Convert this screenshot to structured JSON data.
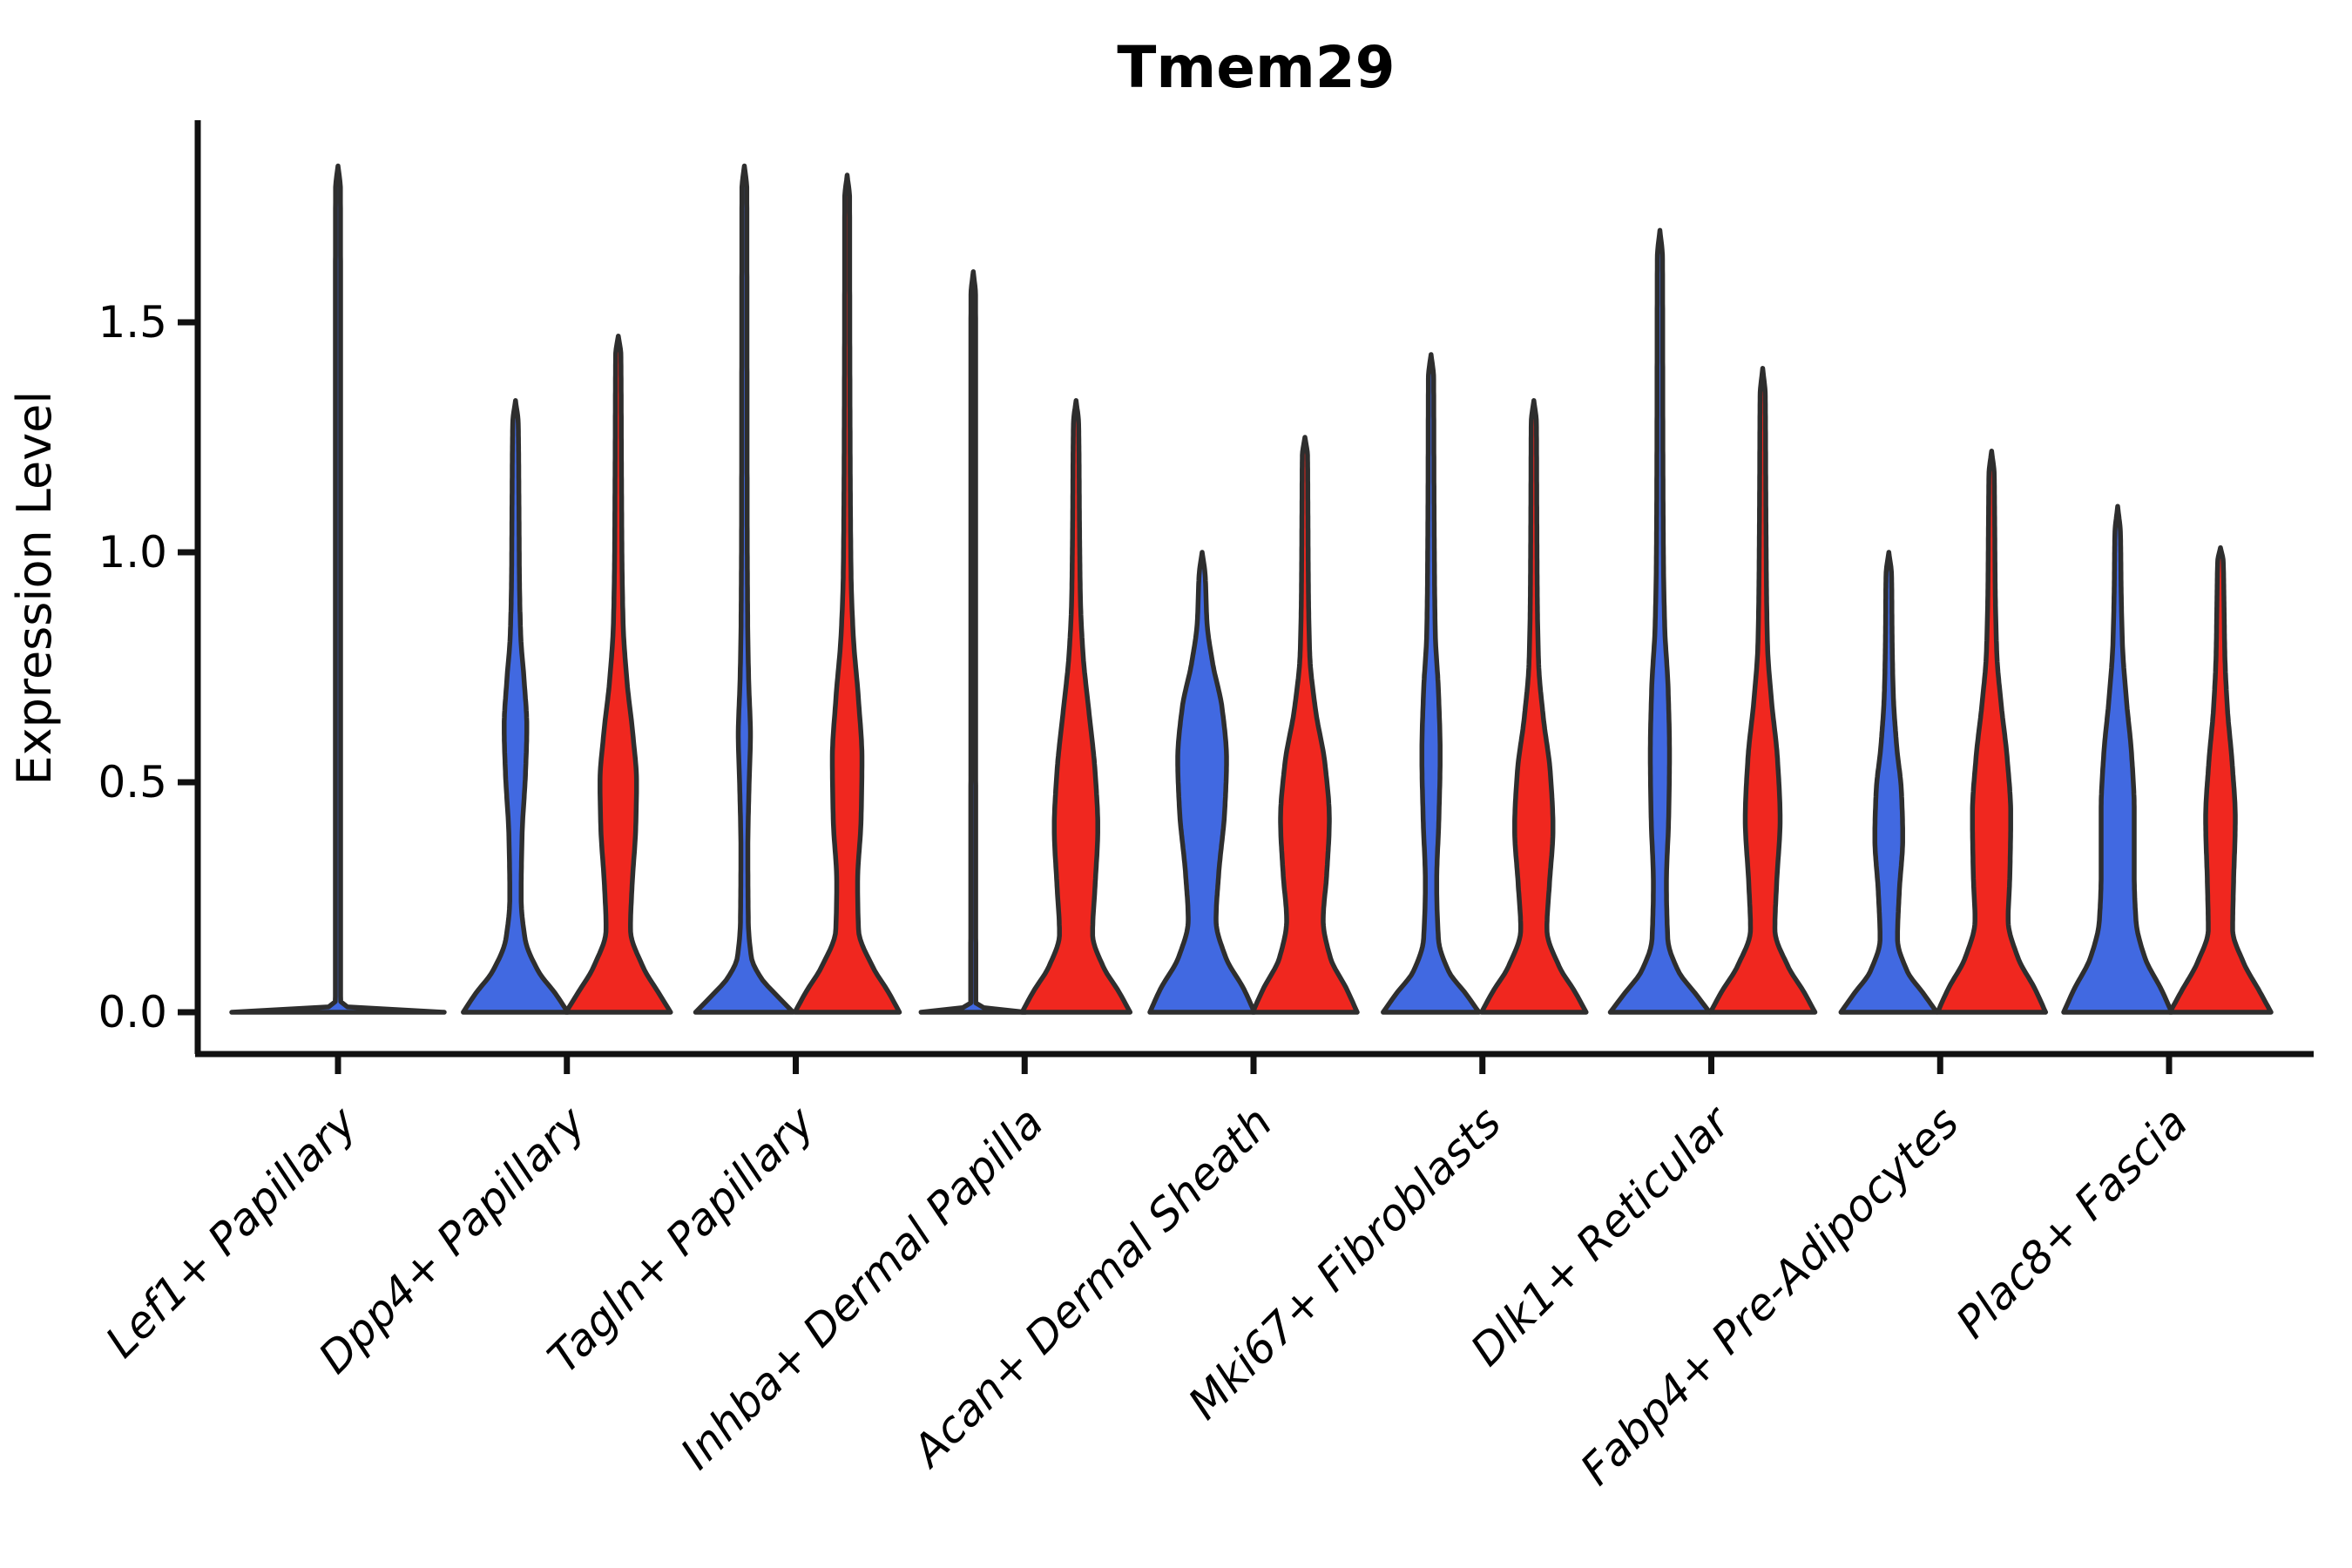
{
  "chart_data": {
    "type": "violin",
    "title": "Tmem29",
    "ylabel": "Expression Level",
    "xlabel": "",
    "yticks": {
      "labels": [
        "0.0",
        "0.5",
        "1.0",
        "1.5"
      ],
      "values": [
        0.0,
        0.5,
        1.0,
        1.5
      ]
    },
    "ylim": [
      -0.09,
      1.94
    ],
    "grid": false,
    "legend": "none",
    "colors": {
      "blue": "#4169E1",
      "red": "#F0271F",
      "outline": "#2E2E2E",
      "axis": "#111111"
    },
    "categories": [
      "Lef1+ Papillary",
      "Dpp4+ Papillary",
      "Tagln+ Papillary",
      "Inhba+ Dermal Papilla",
      "Acan+ Dermal Sheath",
      "Mki67+ Fibroblasts",
      "Dlk1+ Reticular",
      "Fabp4+ Pre-Adipocytes",
      "Plac8+ Fascia"
    ],
    "violins": [
      {
        "category": "Lef1+ Papillary",
        "items": [
          {
            "hue": "single",
            "max": 1.84,
            "profile": [
              [
                0,
                122
              ],
              [
                0.012,
                10
              ],
              [
                0.025,
                3
              ],
              [
                0.5,
                3
              ],
              [
                1.0,
                3
              ],
              [
                1.5,
                3
              ],
              [
                1.79,
                2.8
              ],
              [
                1.84,
                0
              ]
            ]
          }
        ]
      },
      {
        "category": "Dpp4+ Papillary",
        "items": [
          {
            "hue": "blue",
            "max": 1.33,
            "profile": [
              [
                0,
                60
              ],
              [
                0.04,
                46
              ],
              [
                0.09,
                26
              ],
              [
                0.16,
                11
              ],
              [
                0.25,
                6.5
              ],
              [
                0.38,
                7.5
              ],
              [
                0.52,
                11.5
              ],
              [
                0.62,
                13
              ],
              [
                0.72,
                10
              ],
              [
                0.82,
                6
              ],
              [
                0.95,
                4.5
              ],
              [
                1.1,
                4
              ],
              [
                1.28,
                3.2
              ],
              [
                1.33,
                0
              ]
            ]
          },
          {
            "hue": "red",
            "max": 1.47,
            "profile": [
              [
                0,
                60
              ],
              [
                0.04,
                47
              ],
              [
                0.1,
                28
              ],
              [
                0.18,
                14
              ],
              [
                0.28,
                16
              ],
              [
                0.4,
                20
              ],
              [
                0.5,
                21
              ],
              [
                0.6,
                17
              ],
              [
                0.72,
                10
              ],
              [
                0.85,
                5.5
              ],
              [
                1.0,
                4.2
              ],
              [
                1.2,
                3.6
              ],
              [
                1.43,
                3
              ],
              [
                1.47,
                0
              ]
            ]
          }
        ]
      },
      {
        "category": "Tagln+ Papillary",
        "items": [
          {
            "hue": "blue",
            "max": 1.84,
            "profile": [
              [
                0,
                56
              ],
              [
                0.035,
                38
              ],
              [
                0.075,
                19
              ],
              [
                0.12,
                8
              ],
              [
                0.2,
                4.5
              ],
              [
                0.35,
                4
              ],
              [
                0.5,
                5.5
              ],
              [
                0.6,
                7
              ],
              [
                0.72,
                5
              ],
              [
                0.85,
                3.8
              ],
              [
                1.1,
                3.2
              ],
              [
                1.5,
                3
              ],
              [
                1.79,
                2.8
              ],
              [
                1.84,
                0
              ]
            ]
          },
          {
            "hue": "red",
            "max": 1.82,
            "profile": [
              [
                0,
                60
              ],
              [
                0.045,
                47
              ],
              [
                0.1,
                29
              ],
              [
                0.18,
                13
              ],
              [
                0.28,
                12
              ],
              [
                0.42,
                16
              ],
              [
                0.55,
                17
              ],
              [
                0.68,
                13
              ],
              [
                0.82,
                7
              ],
              [
                0.95,
                4.5
              ],
              [
                1.15,
                3.6
              ],
              [
                1.5,
                3
              ],
              [
                1.77,
                2.8
              ],
              [
                1.82,
                0
              ]
            ]
          }
        ]
      },
      {
        "category": "Inhba+ Dermal Papilla",
        "items": [
          {
            "hue": "blue",
            "max": 1.61,
            "profile": [
              [
                0,
                60
              ],
              [
                0.01,
                12
              ],
              [
                0.02,
                3
              ],
              [
                0.5,
                2.8
              ],
              [
                1.0,
                2.8
              ],
              [
                1.4,
                2.8
              ],
              [
                1.56,
                2.6
              ],
              [
                1.61,
                0
              ]
            ]
          },
          {
            "hue": "red",
            "max": 1.33,
            "profile": [
              [
                0,
                62
              ],
              [
                0.045,
                49
              ],
              [
                0.1,
                31
              ],
              [
                0.17,
                19
              ],
              [
                0.28,
                22
              ],
              [
                0.4,
                25
              ],
              [
                0.52,
                22
              ],
              [
                0.65,
                15
              ],
              [
                0.78,
                8
              ],
              [
                0.9,
                5
              ],
              [
                1.05,
                4
              ],
              [
                1.28,
                3
              ],
              [
                1.33,
                0
              ]
            ]
          }
        ]
      },
      {
        "category": "Acan+ Dermal Sheath",
        "items": [
          {
            "hue": "blue",
            "max": 1.0,
            "profile": [
              [
                0,
                60
              ],
              [
                0.05,
                48
              ],
              [
                0.12,
                27
              ],
              [
                0.2,
                16
              ],
              [
                0.3,
                19
              ],
              [
                0.44,
                26
              ],
              [
                0.55,
                28
              ],
              [
                0.66,
                23
              ],
              [
                0.76,
                12
              ],
              [
                0.85,
                5.5
              ],
              [
                0.95,
                3.5
              ],
              [
                1.0,
                0
              ]
            ]
          },
          {
            "hue": "red",
            "max": 1.25,
            "profile": [
              [
                0,
                60
              ],
              [
                0.05,
                48
              ],
              [
                0.12,
                29
              ],
              [
                0.2,
                21
              ],
              [
                0.3,
                25
              ],
              [
                0.42,
                28
              ],
              [
                0.54,
                23
              ],
              [
                0.66,
                12
              ],
              [
                0.78,
                5.5
              ],
              [
                0.92,
                4
              ],
              [
                1.1,
                3.4
              ],
              [
                1.21,
                3
              ],
              [
                1.25,
                0
              ]
            ]
          }
        ]
      },
      {
        "category": "Mki67+ Fibroblasts",
        "items": [
          {
            "hue": "blue",
            "max": 1.43,
            "profile": [
              [
                0,
                55
              ],
              [
                0.04,
                40
              ],
              [
                0.09,
                20
              ],
              [
                0.16,
                8.5
              ],
              [
                0.28,
                6.5
              ],
              [
                0.42,
                9
              ],
              [
                0.56,
                10.5
              ],
              [
                0.7,
                8.5
              ],
              [
                0.82,
                5
              ],
              [
                0.95,
                4
              ],
              [
                1.15,
                3.4
              ],
              [
                1.38,
                3
              ],
              [
                1.43,
                0
              ]
            ]
          },
          {
            "hue": "red",
            "max": 1.33,
            "profile": [
              [
                0,
                60
              ],
              [
                0.045,
                47
              ],
              [
                0.1,
                29
              ],
              [
                0.18,
                15
              ],
              [
                0.28,
                18
              ],
              [
                0.4,
                22
              ],
              [
                0.52,
                19
              ],
              [
                0.64,
                11
              ],
              [
                0.76,
                5.5
              ],
              [
                0.9,
                4
              ],
              [
                1.1,
                3.4
              ],
              [
                1.28,
                3
              ],
              [
                1.33,
                0
              ]
            ]
          }
        ]
      },
      {
        "category": "Dlk1+ Reticular",
        "items": [
          {
            "hue": "blue",
            "max": 1.7,
            "profile": [
              [
                0,
                57
              ],
              [
                0.04,
                41
              ],
              [
                0.09,
                21
              ],
              [
                0.16,
                9
              ],
              [
                0.28,
                7.5
              ],
              [
                0.42,
                10
              ],
              [
                0.56,
                11
              ],
              [
                0.7,
                9.5
              ],
              [
                0.84,
                5.5
              ],
              [
                1.0,
                4
              ],
              [
                1.25,
                3.4
              ],
              [
                1.64,
                3
              ],
              [
                1.7,
                0
              ]
            ]
          },
          {
            "hue": "red",
            "max": 1.4,
            "profile": [
              [
                0,
                60
              ],
              [
                0.045,
                47
              ],
              [
                0.1,
                29
              ],
              [
                0.18,
                14
              ],
              [
                0.28,
                16
              ],
              [
                0.42,
                20
              ],
              [
                0.55,
                17
              ],
              [
                0.68,
                10
              ],
              [
                0.8,
                5.5
              ],
              [
                0.95,
                4.2
              ],
              [
                1.15,
                3.5
              ],
              [
                1.34,
                3
              ],
              [
                1.4,
                0
              ]
            ]
          }
        ]
      },
      {
        "category": "Fabp4+ Pre-Adipocytes",
        "items": [
          {
            "hue": "blue",
            "max": 1.0,
            "profile": [
              [
                0,
                55
              ],
              [
                0.04,
                40
              ],
              [
                0.09,
                21
              ],
              [
                0.16,
                10
              ],
              [
                0.26,
                12
              ],
              [
                0.38,
                16
              ],
              [
                0.48,
                14.5
              ],
              [
                0.58,
                9
              ],
              [
                0.7,
                5
              ],
              [
                0.82,
                3.8
              ],
              [
                0.95,
                3.2
              ],
              [
                1.0,
                0
              ]
            ]
          },
          {
            "hue": "red",
            "max": 1.22,
            "profile": [
              [
                0,
                62
              ],
              [
                0.05,
                50
              ],
              [
                0.12,
                30
              ],
              [
                0.2,
                19
              ],
              [
                0.3,
                21
              ],
              [
                0.43,
                22
              ],
              [
                0.55,
                18
              ],
              [
                0.67,
                11
              ],
              [
                0.78,
                6
              ],
              [
                0.92,
                4.2
              ],
              [
                1.08,
                3.5
              ],
              [
                1.17,
                3
              ],
              [
                1.22,
                0
              ]
            ]
          }
        ]
      },
      {
        "category": "Plac8+ Fascia",
        "items": [
          {
            "hue": "blue",
            "max": 1.1,
            "profile": [
              [
                0,
                62
              ],
              [
                0.05,
                50
              ],
              [
                0.12,
                31
              ],
              [
                0.2,
                21
              ],
              [
                0.3,
                19
              ],
              [
                0.44,
                19
              ],
              [
                0.56,
                16
              ],
              [
                0.68,
                10
              ],
              [
                0.8,
                5.5
              ],
              [
                0.92,
                4
              ],
              [
                1.04,
                3.2
              ],
              [
                1.1,
                0
              ]
            ]
          },
          {
            "hue": "red",
            "max": 1.01,
            "profile": [
              [
                0,
                58
              ],
              [
                0.045,
                45
              ],
              [
                0.11,
                26
              ],
              [
                0.18,
                14
              ],
              [
                0.28,
                15
              ],
              [
                0.42,
                17
              ],
              [
                0.54,
                13.5
              ],
              [
                0.66,
                8
              ],
              [
                0.78,
                5
              ],
              [
                0.9,
                4
              ],
              [
                0.98,
                3.2
              ],
              [
                1.01,
                0
              ]
            ]
          }
        ]
      }
    ]
  }
}
